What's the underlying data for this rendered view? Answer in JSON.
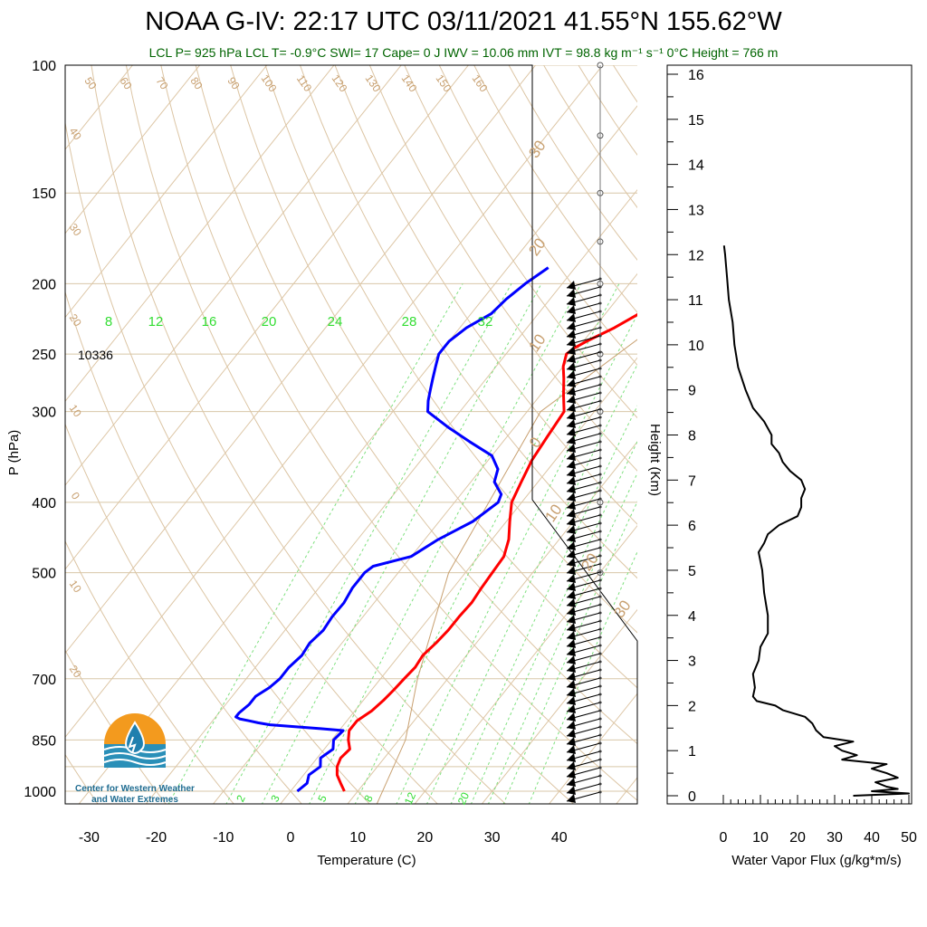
{
  "title": "NOAA G-IV: 22:17 UTC 03/11/2021  41.55°N 155.62°W",
  "subtitle": "LCL P= 925 hPa  LCL T= -0.9°C  SWI= 17  Cape= 0 J  IWV = 10.06 mm  IVT = 98.8 kg m⁻¹ s⁻¹  0°C Height = 766 m",
  "logo_text": [
    "Center for Western Weather",
    "and Water Extremes"
  ],
  "chart_data": [
    {
      "type": "line",
      "name": "skew-t",
      "xlabel": "Temperature (C)",
      "ylabel": "P (hPa)",
      "xlim": [
        -34,
        52
      ],
      "ylim": [
        1050,
        100
      ],
      "y_scale": "log",
      "xticks": [
        "-30",
        "-20",
        "-10",
        "0",
        "10",
        "20",
        "30",
        "40"
      ],
      "yticks": [
        "100",
        "150",
        "200",
        "250",
        "300",
        "400",
        "500",
        "700",
        "850",
        "1000"
      ],
      "annotations": [
        {
          "text": "10336",
          "p": 250
        }
      ],
      "mixing_ratio_labels": [
        "8",
        "12",
        "16",
        "20",
        "24",
        "28",
        "32"
      ],
      "low_mixing_ratio_labels": [
        "2",
        "3",
        "5",
        "8",
        "12",
        "20"
      ],
      "dry_adiabat_labels": [
        "50",
        "60",
        "70",
        "80",
        "90",
        "100",
        "110",
        "120",
        "130",
        "140",
        "150",
        "160"
      ],
      "isotherm_labels": [
        "40",
        "30",
        "20",
        "10",
        "0",
        "10",
        "20"
      ],
      "isotherm_labels_right": [
        "30",
        "20",
        "10",
        "0",
        "10",
        "20",
        "30"
      ],
      "colors": {
        "temperature": "#ff0000",
        "dewpoint": "#0000ff",
        "mixing_ratio": "#00cc00",
        "adiabat": "#d2b48c",
        "parcel": "#c8a070"
      },
      "series": [
        {
          "key": "temperature",
          "p": [
            1000,
            975,
            950,
            925,
            900,
            875,
            850,
            825,
            800,
            775,
            750,
            725,
            700,
            675,
            650,
            625,
            600,
            575,
            550,
            525,
            500,
            475,
            450,
            425,
            400,
            375,
            350,
            325,
            300,
            285,
            270,
            260,
            250,
            245,
            240,
            230,
            220,
            210,
            200,
            190
          ],
          "t": [
            8,
            6.5,
            5,
            4,
            3.5,
            3.8,
            2.5,
            1.5,
            1.5,
            2.5,
            3,
            3.3,
            3.5,
            3.8,
            3.5,
            4,
            4.3,
            4.3,
            4.5,
            4.2,
            4,
            3.8,
            2.5,
            0.5,
            -1.5,
            -2.5,
            -3.5,
            -4,
            -4.5,
            -6.5,
            -8.5,
            -10,
            -11,
            -10.5,
            -9.5,
            -7,
            -5,
            -4.5,
            -4,
            -2
          ]
        },
        {
          "key": "dewpoint",
          "p": [
            1000,
            975,
            950,
            925,
            900,
            875,
            850,
            825,
            820,
            815,
            810,
            805,
            800,
            795,
            790,
            780,
            760,
            740,
            720,
            700,
            675,
            650,
            625,
            600,
            575,
            550,
            525,
            500,
            490,
            475,
            450,
            425,
            400,
            390,
            375,
            360,
            345,
            330,
            315,
            300,
            290,
            280,
            270,
            260,
            250,
            240,
            230,
            220,
            210,
            200,
            190
          ],
          "t": [
            1,
            1.5,
            0.8,
            1.5,
            0.5,
            1.3,
            0.3,
            0.6,
            -3,
            -7,
            -11,
            -13,
            -14.5,
            -16.2,
            -17,
            -17,
            -16.5,
            -16.5,
            -15.5,
            -15,
            -15,
            -14.5,
            -14.8,
            -14.3,
            -14.6,
            -14.5,
            -15,
            -15,
            -14.5,
            -10,
            -8,
            -5,
            -3.5,
            -4,
            -6.5,
            -7.5,
            -10,
            -15,
            -20,
            -24.8,
            -26,
            -27,
            -28,
            -29,
            -30,
            -30,
            -29,
            -27,
            -26.5,
            -25.5,
            -24
          ]
        },
        {
          "key": "parcel",
          "p": [
            1050,
            850,
            700,
            500,
            300,
            100
          ],
          "t": [
            14.5,
            11,
            5.5,
            -2.5,
            -8,
            20
          ]
        }
      ]
    },
    {
      "type": "line",
      "name": "water-vapor-flux",
      "xlabel": "Water Vapor Flux (g/kg*m/s)",
      "ylabel": "Height (Km)",
      "xlim": [
        0,
        50
      ],
      "ylim": [
        -0.3,
        16.5
      ],
      "xticks": [
        "0",
        "10",
        "20",
        "30",
        "40",
        "50"
      ],
      "yticks": [
        "0",
        "1",
        "2",
        "3",
        "4",
        "5",
        "6",
        "7",
        "8",
        "9",
        "10",
        "11",
        "12",
        "13",
        "14",
        "15",
        "16"
      ],
      "series": [
        {
          "key": "flux",
          "h": [
            0,
            0.05,
            0.1,
            0.15,
            0.2,
            0.3,
            0.4,
            0.5,
            0.6,
            0.7,
            0.8,
            0.9,
            1.0,
            1.1,
            1.2,
            1.3,
            1.45,
            1.6,
            1.75,
            1.9,
            2.0,
            2.1,
            2.2,
            2.4,
            2.7,
            3.0,
            3.3,
            3.6,
            4.0,
            4.5,
            5.0,
            5.4,
            5.6,
            5.8,
            6.0,
            6.2,
            6.4,
            6.6,
            6.8,
            7.0,
            7.2,
            7.4,
            7.6,
            7.8,
            8.0,
            8.3,
            8.6,
            8.8,
            9.0,
            9.5,
            10.0,
            10.5,
            11.0,
            11.5,
            12.0,
            12.2
          ],
          "v": [
            35,
            50,
            40,
            47,
            44,
            41,
            47,
            44,
            40,
            44,
            32,
            36,
            32,
            30,
            35,
            27,
            25,
            24,
            22,
            16,
            14,
            9,
            8,
            8.5,
            8,
            9.5,
            10,
            12,
            12,
            11,
            10.5,
            9.5,
            11,
            12,
            15,
            20,
            21,
            21,
            22,
            21,
            18,
            16,
            15,
            13,
            13,
            11,
            8,
            7,
            6,
            4,
            3,
            2.5,
            1.5,
            1,
            0.5,
            0.2
          ]
        }
      ]
    }
  ]
}
